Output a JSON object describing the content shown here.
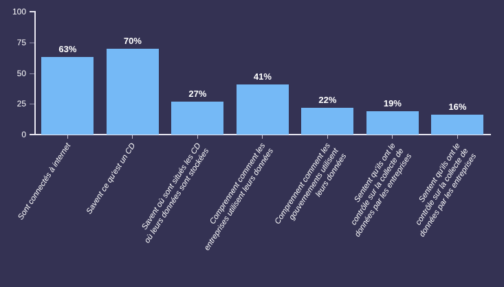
{
  "chart_data": {
    "type": "bar",
    "categories": [
      "Sont connectés à internet",
      "Savent ce qu'est un CD",
      "Savent où sont situés les CD\noù leurs données sont stockées",
      "Comprennent comment les\nentreprises utilisent leurs données",
      "Comprennent comment les\ngouvernements utilisent\nleurs données",
      "Sentent qu'ils ont le\ncontrôle sur la collecte de\ndonnées par les entreprises",
      "Sentent qu'ils ont le\ncontrôle sur la collecte de\ndonnées par les entreprises"
    ],
    "values": [
      63,
      70,
      27,
      41,
      22,
      19,
      16
    ],
    "value_labels": [
      "63%",
      "70%",
      "27%",
      "41%",
      "22%",
      "19%",
      "16%"
    ],
    "title": "",
    "xlabel": "",
    "ylabel": "",
    "ylim": [
      0,
      100
    ],
    "yticks": [
      0,
      25,
      50,
      75,
      100
    ],
    "grid": false,
    "legend": null,
    "colors": {
      "background": "#343253",
      "bar": "#75B9F6",
      "axis": "#E9E8F2",
      "tick_minor": "#8E8CA8",
      "text": "#FFFFFF"
    }
  }
}
